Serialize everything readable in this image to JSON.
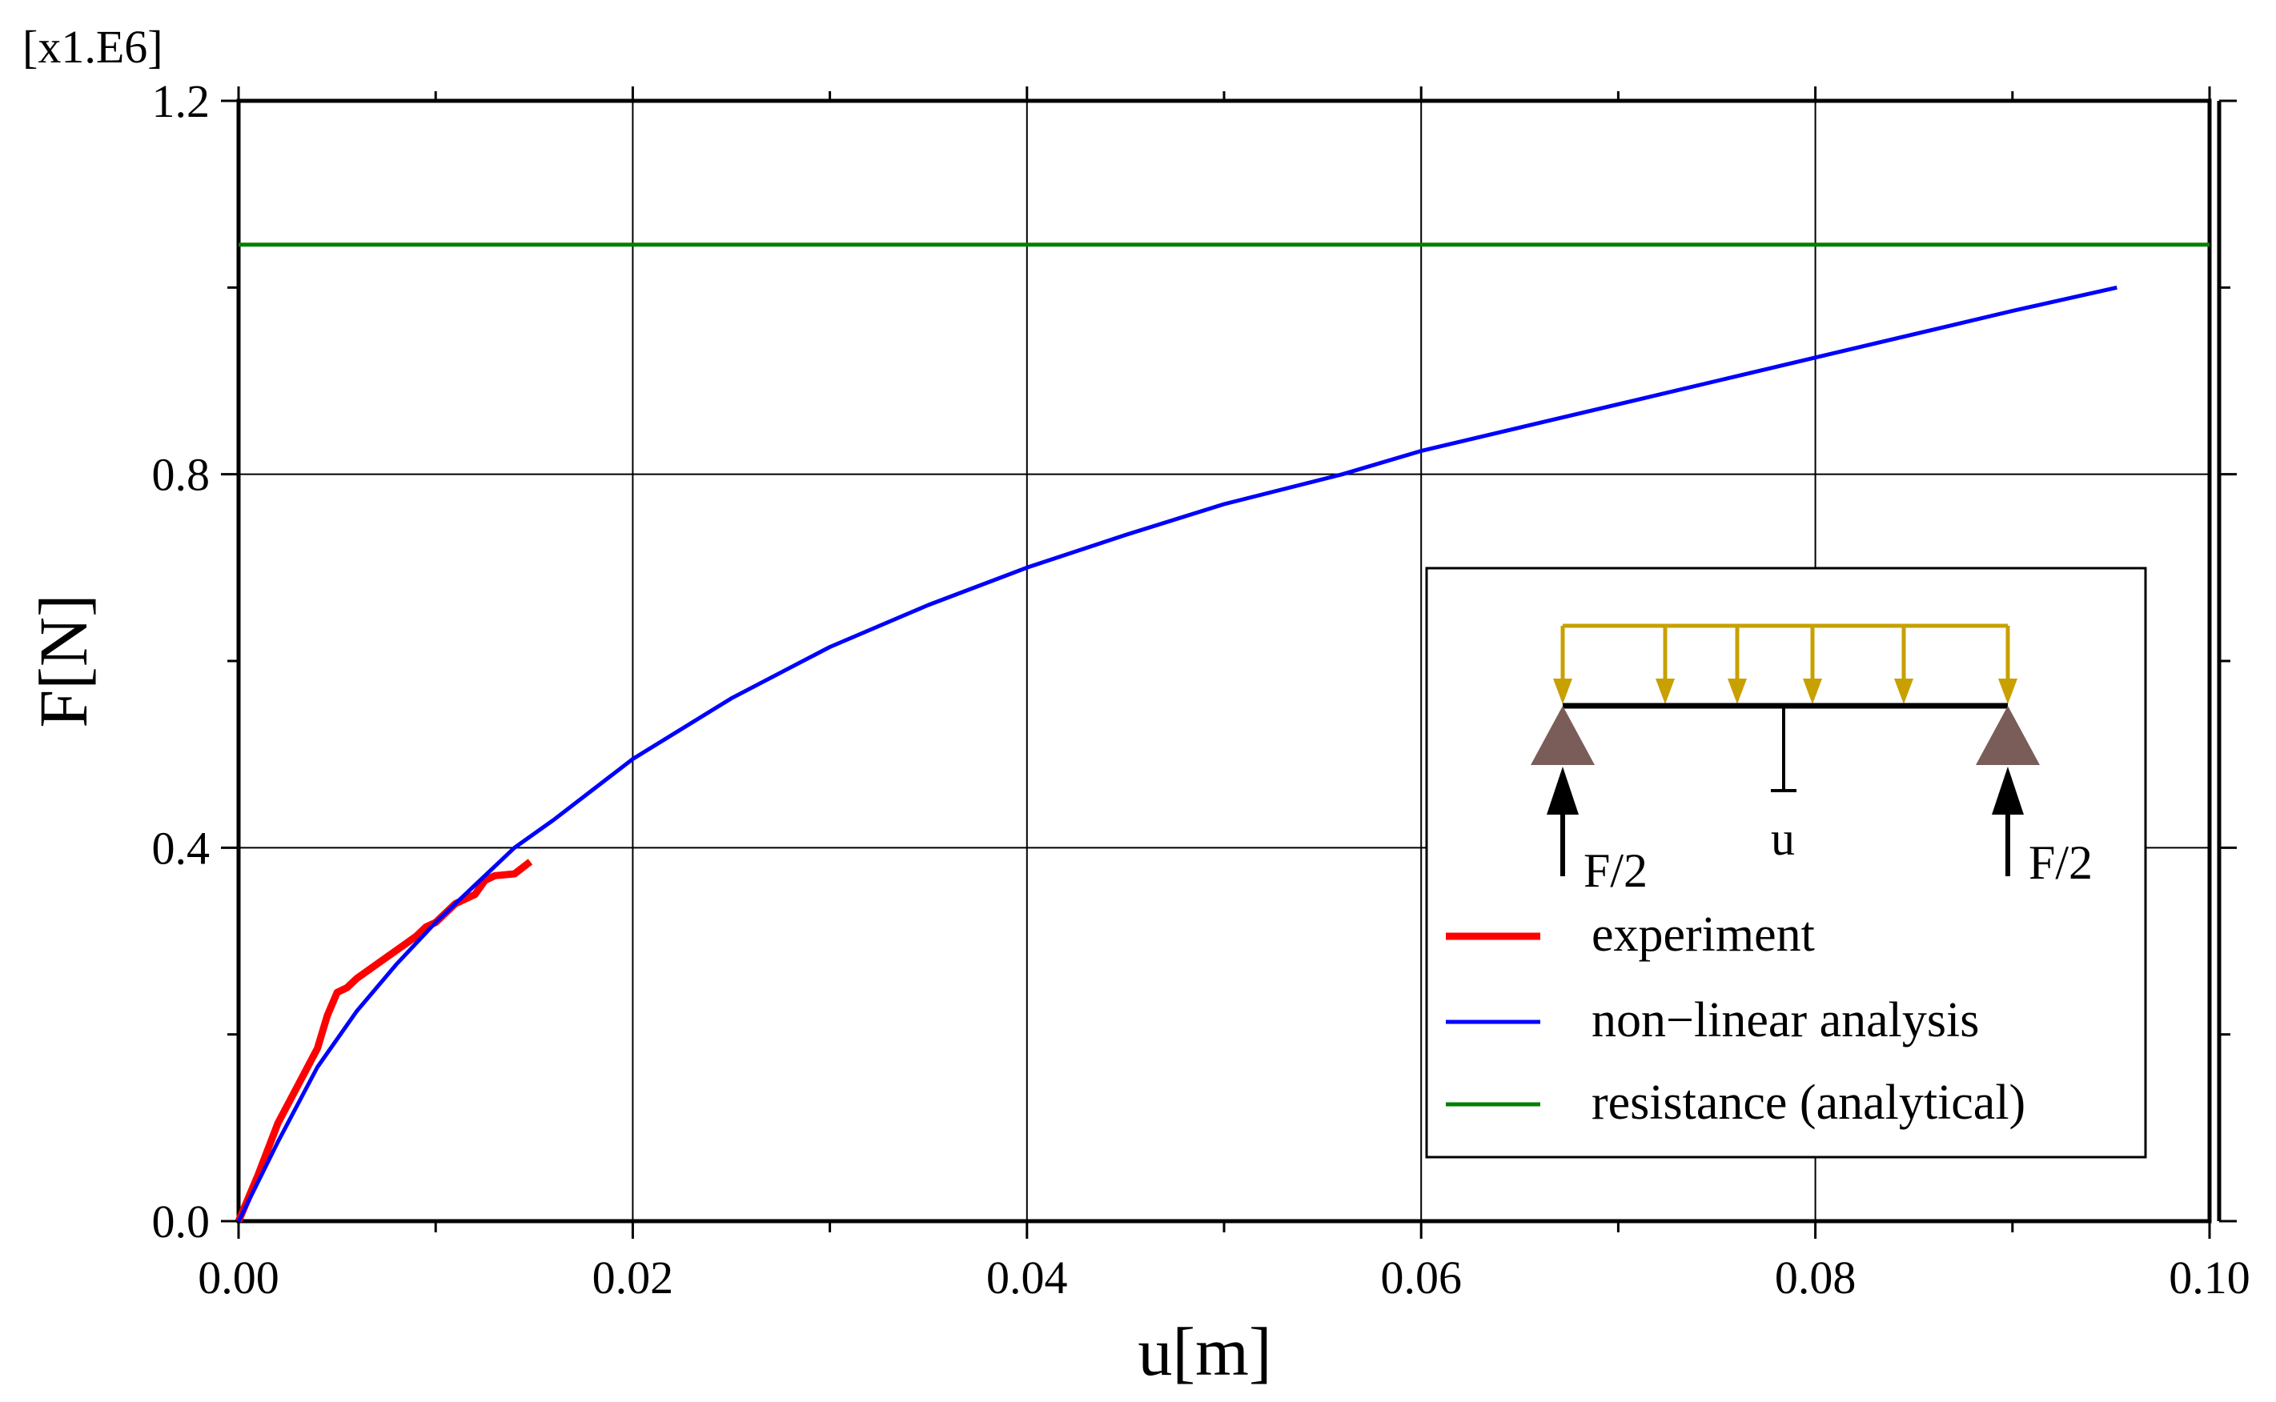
{
  "chart_data": {
    "type": "line",
    "title": "",
    "xlabel": "u[m]",
    "ylabel": "F[N]",
    "y_scale_note": "[x1.E6]",
    "xlim": [
      0,
      0.1
    ],
    "ylim": [
      0,
      1.2
    ],
    "grid": true,
    "x_ticks": [
      "0.00",
      "0.02",
      "0.04",
      "0.06",
      "0.08",
      "0.10"
    ],
    "x_tick_values": [
      0,
      0.02,
      0.04,
      0.06,
      0.08,
      0.1
    ],
    "y_ticks": [
      "0.0",
      "0.4",
      "0.8",
      "1.2"
    ],
    "y_tick_values": [
      0,
      0.4,
      0.8,
      1.2
    ],
    "legend_position": "bottom-right",
    "series": [
      {
        "name": "experiment",
        "color": "#ff0000",
        "x": [
          0,
          0.001,
          0.002,
          0.003,
          0.004,
          0.0045,
          0.005,
          0.0055,
          0.006,
          0.007,
          0.008,
          0.009,
          0.0095,
          0.01,
          0.011,
          0.012,
          0.0125,
          0.013,
          0.014,
          0.0148
        ],
        "y": [
          0,
          0.05,
          0.105,
          0.145,
          0.185,
          0.22,
          0.245,
          0.25,
          0.26,
          0.275,
          0.29,
          0.305,
          0.315,
          0.32,
          0.34,
          0.35,
          0.365,
          0.37,
          0.372,
          0.385
        ]
      },
      {
        "name": "non−linear analysis",
        "color": "#0000ff",
        "x": [
          0,
          0.002,
          0.004,
          0.006,
          0.008,
          0.01,
          0.012,
          0.014,
          0.016,
          0.02,
          0.025,
          0.03,
          0.035,
          0.04,
          0.045,
          0.05,
          0.056,
          0.06,
          0.065,
          0.07,
          0.075,
          0.08,
          0.085,
          0.09,
          0.0953
        ],
        "y": [
          0,
          0.085,
          0.165,
          0.225,
          0.275,
          0.32,
          0.36,
          0.4,
          0.43,
          0.495,
          0.56,
          0.615,
          0.66,
          0.7,
          0.735,
          0.768,
          0.8,
          0.825,
          0.85,
          0.875,
          0.9,
          0.925,
          0.95,
          0.975,
          1.0
        ]
      },
      {
        "name": "resistance (analytical)",
        "color": "#008000",
        "x": [
          0,
          0.1
        ],
        "y": [
          1.046,
          1.046
        ]
      }
    ],
    "inset_sketch": {
      "labels": {
        "left_reaction": "F/2",
        "right_reaction": "F/2",
        "deflection": "u"
      },
      "load_color": "#c8a000",
      "support_color": "#7a5c58"
    }
  }
}
